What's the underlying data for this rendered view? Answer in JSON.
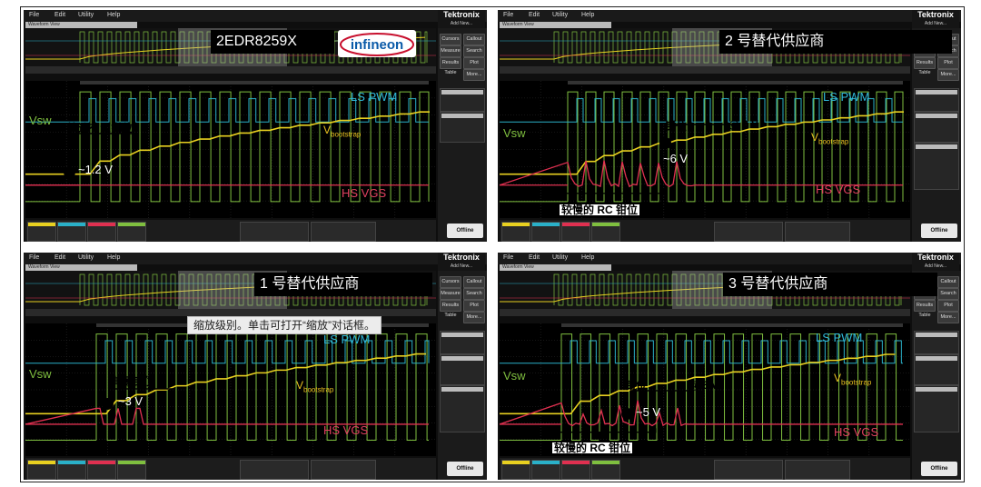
{
  "menu": [
    "File",
    "Edit",
    "Utility",
    "Help"
  ],
  "brand": {
    "name": "Tektronix",
    "sub": "Add New..."
  },
  "window_title": "Waveform View",
  "side_buttons": [
    "Cursors",
    "Callout",
    "Measure",
    "Search",
    "Results Table",
    "Plot",
    "More..."
  ],
  "offline": "Offline",
  "panels": [
    {
      "title": "2EDR8259X",
      "logo_text": "infineon",
      "labels": {
        "vsw": "Vsw",
        "ls": "LS PWM",
        "hs": "HS VGS",
        "vb": "V",
        "vb_sub": "bootstrap"
      },
      "clamp_label": "快速有源钳位",
      "voltage": "~1.2 V"
    },
    {
      "title": "2 号替代供应商",
      "labels": {
        "vsw": "Vsw",
        "ls": "LS PWM",
        "hs": "HS VGS",
        "vb": "V",
        "vb_sub": "bootstrap"
      },
      "clamp_label": "钳位",
      "clamp_at": "@ 8 V",
      "voltage": "~6 V",
      "rc_label": "较慢的 RC 钳位"
    },
    {
      "title": "1 号替代供应商",
      "tooltip": "缩放级别。单击可打开“缩放”对话框。",
      "labels": {
        "vsw": "Vsw",
        "ls": "LS PWM",
        "hs": "HS VGS",
        "vb": "V",
        "vb_sub": "bootstrap"
      },
      "clamp_label": "有源钳位",
      "voltage": "~3 V"
    },
    {
      "title": "3 号替代供应商",
      "labels": {
        "vsw": "Vsw",
        "ls": "LS PWM",
        "hs": "HS VGS",
        "vb": "V",
        "vb_sub": "bootstrap"
      },
      "clamp_label": "钳位",
      "clamp_at": "@ 5 V",
      "voltage": "~5 V",
      "rc_label": "较慢的 RC 钳位"
    }
  ],
  "colors": {
    "pwm": "#2ab0c8",
    "vsw": "#7fbf3f",
    "boot": "#e8d020",
    "hs": "#e03050",
    "label_cyan": "#2fb8d8",
    "label_pink": "#e04060"
  }
}
